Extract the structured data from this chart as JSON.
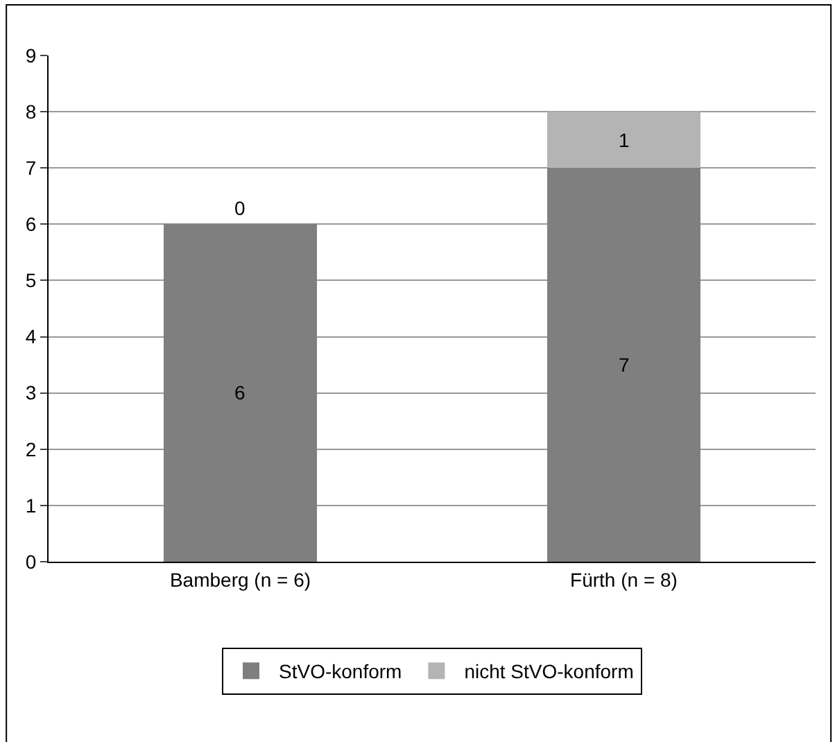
{
  "chart_data": {
    "type": "bar",
    "stacked": true,
    "categories": [
      "Bamberg (n = 6)",
      "Fürth (n = 8)"
    ],
    "series": [
      {
        "name": "StVO-konform",
        "color": "#7f7f7f",
        "values": [
          6,
          7
        ]
      },
      {
        "name": "nicht StVO-konform",
        "color": "#b4b4b4",
        "values": [
          0,
          1
        ]
      }
    ],
    "ylim": [
      0,
      9
    ],
    "yticks": [
      0,
      1,
      2,
      3,
      4,
      5,
      6,
      7,
      8,
      9
    ],
    "grid": "y",
    "legend": "bottom",
    "data_labels": true
  }
}
